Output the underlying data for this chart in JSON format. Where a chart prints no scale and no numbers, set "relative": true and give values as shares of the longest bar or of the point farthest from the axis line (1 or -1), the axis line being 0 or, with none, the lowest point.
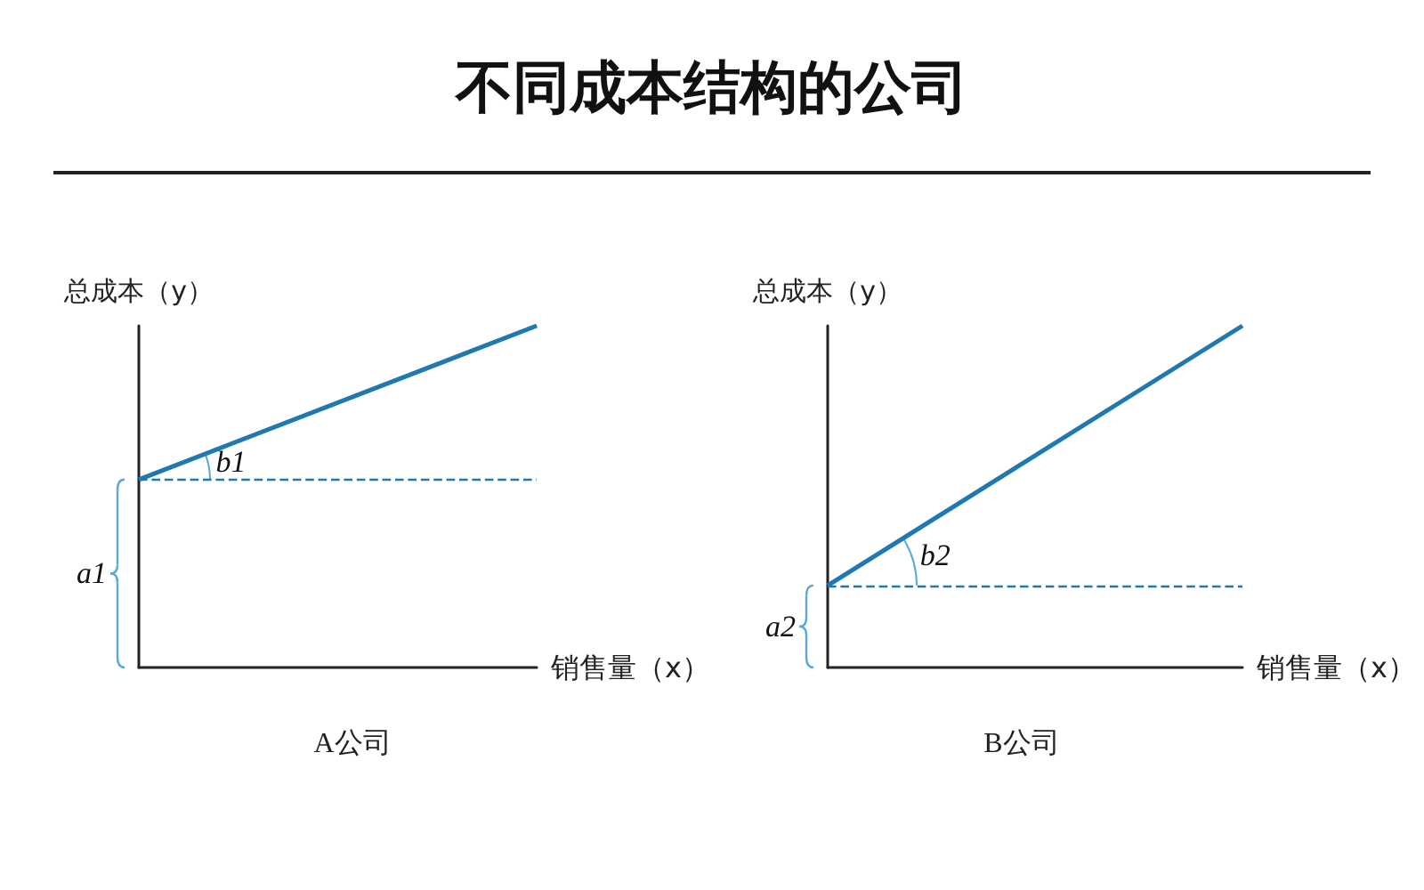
{
  "chart_data": [
    {
      "type": "line",
      "title": "不同成本结构的公司",
      "subtitle": "A公司",
      "xlabel": "销售量（x）",
      "ylabel": "总成本（y）",
      "relative": true,
      "categories": [
        null,
        null
      ],
      "annotations": [
        "b1",
        "a1"
      ],
      "grid": false,
      "marker": "none",
      "series": [
        {
          "color": "#1f78b0",
          "values": [
            0.55,
            1
          ],
          "line_style": "solid"
        }
      ],
      "ref_lines": [
        {
          "axis": "y",
          "value": 0.55,
          "color": "#1f78b0",
          "line_style": "dashed"
        }
      ]
    },
    {
      "type": "line",
      "subtitle": "B公司",
      "xlabel": "销售量（x）",
      "ylabel": "总成本（y）",
      "relative": true,
      "categories": [
        null,
        null
      ],
      "annotations": [
        "b2",
        "a2"
      ],
      "grid": false,
      "marker": "none",
      "series": [
        {
          "color": "#1f78b0",
          "values": [
            0.24,
            1
          ],
          "line_style": "solid"
        }
      ],
      "ref_lines": [
        {
          "axis": "y",
          "value": 0.24,
          "color": "#1f78b0",
          "line_style": "dashed"
        }
      ]
    }
  ]
}
